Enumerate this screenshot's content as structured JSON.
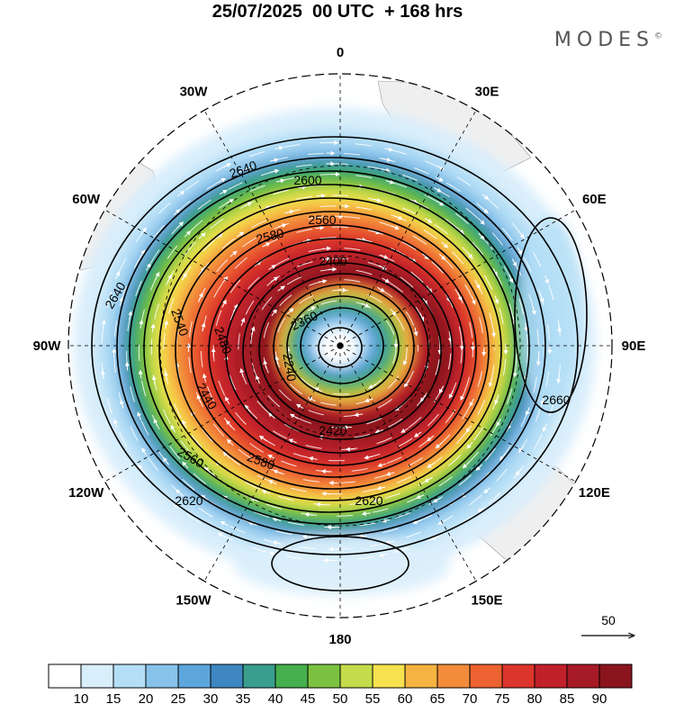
{
  "header": {
    "title": "25/07/2025  00 UTC  + 168 hrs",
    "brand": "MODES",
    "brand_mark": "©"
  },
  "map": {
    "projection": "south-polar-stereographic",
    "longitude_labels": [
      {
        "id": "lon-0",
        "text": "0",
        "angle": 0
      },
      {
        "id": "lon-30e",
        "text": "30E",
        "angle": 30
      },
      {
        "id": "lon-60e",
        "text": "60E",
        "angle": 60
      },
      {
        "id": "lon-90e",
        "text": "90E",
        "angle": 90
      },
      {
        "id": "lon-120e",
        "text": "120E",
        "angle": 120
      },
      {
        "id": "lon-150e",
        "text": "150E",
        "angle": 150
      },
      {
        "id": "lon-180",
        "text": "180",
        "angle": 180
      },
      {
        "id": "lon-150w",
        "text": "150W",
        "angle": 210
      },
      {
        "id": "lon-120w",
        "text": "120W",
        "angle": 240
      },
      {
        "id": "lon-90w",
        "text": "90W",
        "angle": 270
      },
      {
        "id": "lon-60w",
        "text": "60W",
        "angle": 300
      },
      {
        "id": "lon-30w",
        "text": "30W",
        "angle": 330
      }
    ],
    "contour_labels": [
      "2640",
      "2600",
      "2580",
      "2560",
      "2400",
      "2360",
      "2240",
      "2420",
      "2440",
      "2480",
      "2540",
      "2620",
      "2660",
      "2560",
      "2580",
      "2620",
      "2640"
    ],
    "reference_vector": {
      "label": "50"
    }
  },
  "colorbar": {
    "colors": [
      "#ffffff",
      "#d9eefb",
      "#b4def6",
      "#87c3ea",
      "#5da6dc",
      "#3f87c2",
      "#3a9e8e",
      "#45b04d",
      "#7cc241",
      "#c4db4a",
      "#f6e14e",
      "#f5b342",
      "#f28c3a",
      "#ec6230",
      "#dc352c",
      "#c0202a",
      "#a61a25",
      "#8a141e"
    ],
    "ticks": [
      "10",
      "15",
      "20",
      "25",
      "30",
      "35",
      "40",
      "45",
      "50",
      "55",
      "60",
      "65",
      "70",
      "75",
      "80",
      "85",
      "90"
    ]
  },
  "colors": {
    "land": "#efefef",
    "contour": "#000000",
    "grid": "#000000",
    "streamline": "#ffffff"
  }
}
